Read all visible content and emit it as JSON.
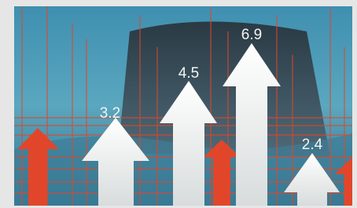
{
  "image": {
    "labels": [
      "3.2",
      "4.5",
      "6.9",
      "2.4"
    ]
  }
}
